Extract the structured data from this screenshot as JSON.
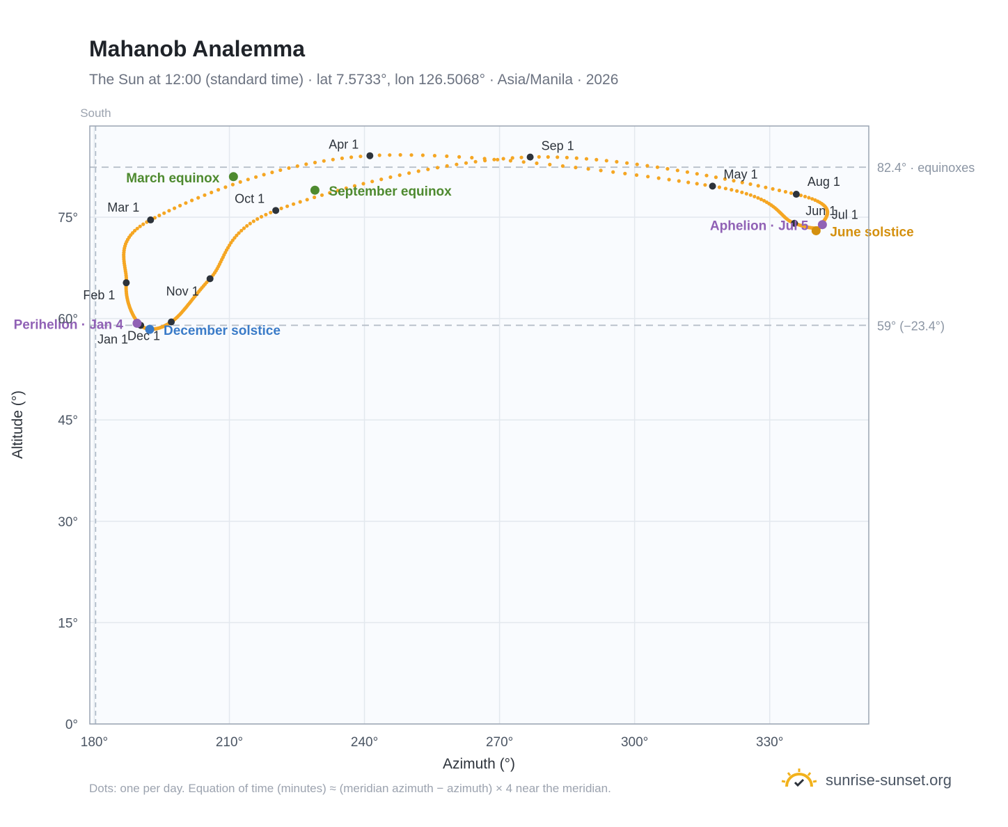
{
  "header": {
    "title": "Mahanob Analemma",
    "subtitle": "The Sun at 12:00 (standard time) · lat 7.5733°, lon 126.5068° · Asia/Manila · 2026"
  },
  "footer": {
    "note": "Dots: one per day. Equation of time (minutes) ≈ (meridian azimuth − azimuth) × 4 near the meridian.",
    "brand": "sunrise-sunset.org"
  },
  "colors": {
    "path": "#f5a623",
    "month_marker": "#2d333b",
    "equinox": "#4e8a2f",
    "december_solstice": "#3a7bc8",
    "june_solstice": "#d4900e",
    "apsis": "#9061b5",
    "plot_bg": "#f9fbfe",
    "grid": "#e3e8ee",
    "frame": "#9aa4b2"
  },
  "chart_data": {
    "type": "scatter",
    "xlabel": "Azimuth (°)",
    "ylabel": "Altitude (°)",
    "xlim": [
      179,
      352
    ],
    "ylim": [
      0,
      88.5
    ],
    "x_ticks": [
      180,
      210,
      240,
      270,
      300,
      330
    ],
    "x_tick_labels": [
      "180°",
      "210°",
      "240°",
      "270°",
      "300°",
      "330°"
    ],
    "y_ticks": [
      0,
      15,
      30,
      45,
      60,
      75
    ],
    "y_tick_labels": [
      "0°",
      "15°",
      "30°",
      "45°",
      "60°",
      "75°"
    ],
    "grid": true,
    "meridian": {
      "azimuth": 180.3,
      "label": "South"
    },
    "reference_lines": [
      {
        "altitude": 82.4,
        "label": "82.4° · equinoxes"
      },
      {
        "altitude": 59.0,
        "label": "59° (−23.4°)"
      }
    ],
    "month_markers": [
      {
        "label": "Jan 1",
        "az": 190.3,
        "alt": 59.0
      },
      {
        "label": "Feb 1",
        "az": 187.1,
        "alt": 65.3
      },
      {
        "label": "Mar 1",
        "az": 192.5,
        "alt": 74.6
      },
      {
        "label": "Apr 1",
        "az": 241.2,
        "alt": 84.1
      },
      {
        "label": "May 1",
        "az": 317.3,
        "alt": 79.6
      },
      {
        "label": "Jun 1",
        "az": 335.5,
        "alt": 74.1
      },
      {
        "label": "Jul 1",
        "az": 341.6,
        "alt": 73.9
      },
      {
        "label": "Aug 1",
        "az": 335.9,
        "alt": 78.4
      },
      {
        "label": "Sep 1",
        "az": 276.8,
        "alt": 83.9
      },
      {
        "label": "Oct 1",
        "az": 220.3,
        "alt": 76.0
      },
      {
        "label": "Nov 1",
        "az": 205.7,
        "alt": 65.9
      },
      {
        "label": "Dec 1",
        "az": 197.1,
        "alt": 59.5
      }
    ],
    "events": [
      {
        "label": "March equinox",
        "az": 210.9,
        "alt": 81.0,
        "kind": "equinox"
      },
      {
        "label": "September equinox",
        "az": 229.0,
        "alt": 79.0,
        "kind": "equinox"
      },
      {
        "label": "December solstice",
        "az": 192.3,
        "alt": 58.4,
        "kind": "december_solstice"
      },
      {
        "label": "June solstice",
        "az": 340.3,
        "alt": 73.0,
        "kind": "june_solstice"
      },
      {
        "label": "Perihelion · Jan 4",
        "az": 189.5,
        "alt": 59.3,
        "kind": "apsis"
      },
      {
        "label": "Aphelion · Jul 5",
        "az": 341.7,
        "alt": 73.9,
        "kind": "apsis"
      }
    ],
    "daily_path_anchors": [
      {
        "az": 190.3,
        "alt": 59.0
      },
      {
        "az": 187.1,
        "alt": 65.3
      },
      {
        "az": 192.5,
        "alt": 74.6
      },
      {
        "az": 241.2,
        "alt": 84.1
      },
      {
        "az": 317.3,
        "alt": 79.6
      },
      {
        "az": 335.5,
        "alt": 74.1
      },
      {
        "az": 341.6,
        "alt": 73.9
      },
      {
        "az": 335.9,
        "alt": 78.4
      },
      {
        "az": 276.8,
        "alt": 83.9
      },
      {
        "az": 220.3,
        "alt": 76.0
      },
      {
        "az": 205.7,
        "alt": 65.9
      },
      {
        "az": 197.1,
        "alt": 59.5
      },
      {
        "az": 190.3,
        "alt": 59.0
      }
    ]
  }
}
